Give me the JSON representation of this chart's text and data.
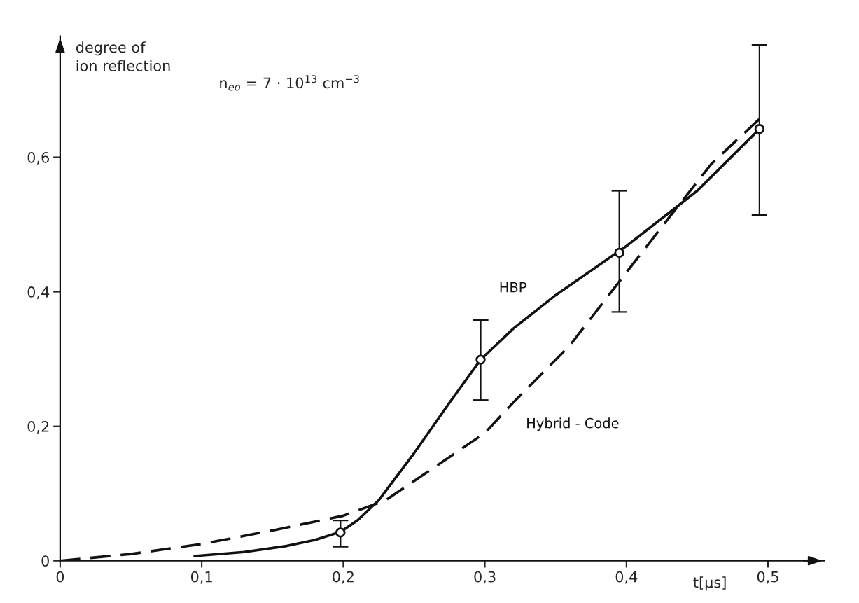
{
  "chart_data": {
    "type": "line",
    "ylabel": "degree of\nion reflection",
    "xlabel": "t[μs]",
    "annotations": [
      "n$_{eo}$ = 7 · 10$^{13}$ cm$^{−3}$"
    ],
    "xlim": [
      0,
      0.54
    ],
    "ylim": [
      0,
      0.78
    ],
    "xticks": [
      {
        "value": 0,
        "label": "0"
      },
      {
        "value": 0.1,
        "label": "0,1"
      },
      {
        "value": 0.2,
        "label": "0,2"
      },
      {
        "value": 0.3,
        "label": "0,3"
      },
      {
        "value": 0.4,
        "label": "0,4"
      },
      {
        "value": 0.5,
        "label": "0,5"
      }
    ],
    "yticks": [
      {
        "value": 0,
        "label": "0"
      },
      {
        "value": 0.2,
        "label": "0,2"
      },
      {
        "value": 0.4,
        "label": "0,4"
      },
      {
        "value": 0.6,
        "label": "0,6"
      }
    ],
    "grid": false,
    "legend": false,
    "series": [
      {
        "name": "HBP",
        "color": "#111111",
        "line_style": "solid",
        "marker": "none",
        "x": [
          0.095,
          0.13,
          0.16,
          0.18,
          0.198,
          0.21,
          0.225,
          0.25,
          0.275,
          0.297,
          0.32,
          0.35,
          0.4,
          0.45,
          0.494
        ],
        "values": [
          0.007,
          0.013,
          0.022,
          0.031,
          0.043,
          0.06,
          0.09,
          0.16,
          0.235,
          0.299,
          0.345,
          0.395,
          0.468,
          0.55,
          0.642
        ]
      },
      {
        "name": "Hybrid - Code",
        "color": "#111111",
        "line_style": "dashed",
        "marker": "none",
        "x": [
          0,
          0.05,
          0.1,
          0.15,
          0.2,
          0.23,
          0.265,
          0.3,
          0.319,
          0.36,
          0.396,
          0.43,
          0.46,
          0.494
        ],
        "values": [
          0,
          0.01,
          0.025,
          0.045,
          0.067,
          0.09,
          0.14,
          0.19,
          0.233,
          0.32,
          0.418,
          0.51,
          0.59,
          0.657
        ]
      },
      {
        "type": "scatter",
        "color": "#111111",
        "marker": "circle",
        "x": [
          0.198,
          0.297,
          0.395,
          0.494
        ],
        "values": [
          0.042,
          0.299,
          0.458,
          0.642
        ],
        "errors": [
          [
            0.021,
            0.06
          ],
          [
            0.239,
            0.358
          ],
          [
            0.37,
            0.55
          ],
          [
            0.514,
            0.767
          ]
        ]
      }
    ]
  }
}
